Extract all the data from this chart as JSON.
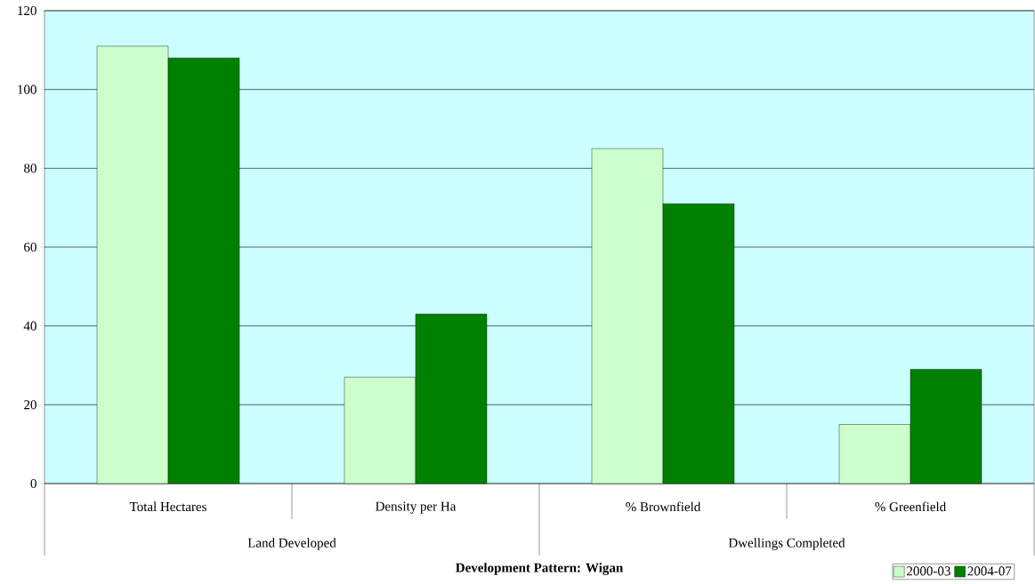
{
  "chart_data": {
    "type": "bar",
    "title": "Development Pattern: Wigan",
    "categories": [
      "Total Hectares",
      "Density per Ha",
      "% Brownfield",
      "% Greenfield"
    ],
    "series": [
      {
        "name": "2000-03",
        "color": "#ccffcc",
        "values": [
          111,
          27,
          85,
          15
        ]
      },
      {
        "name": "2004-07",
        "color": "#008000",
        "values": [
          108,
          43,
          71,
          29
        ]
      }
    ],
    "annotations": [
      "Land Developed",
      "Dwellings Completed"
    ],
    "ylim": [
      0,
      120
    ],
    "yticks": [
      0,
      20,
      40,
      60,
      80,
      100,
      120
    ],
    "grid": "y",
    "legend": "bottom right"
  }
}
